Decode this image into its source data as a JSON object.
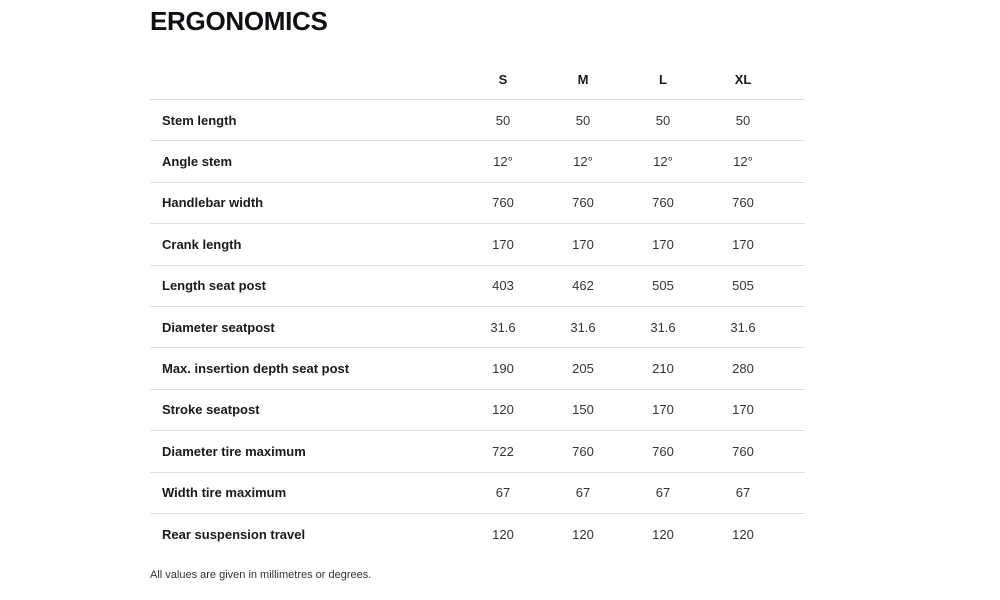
{
  "page": {
    "title": "ERGONOMICS",
    "footnote": "All values are given in millimetres or degrees."
  },
  "table": {
    "columns": [
      "S",
      "M",
      "L",
      "XL"
    ],
    "rows": [
      {
        "label": "Stem length",
        "values": [
          "50",
          "50",
          "50",
          "50"
        ]
      },
      {
        "label": "Angle stem",
        "values": [
          "12°",
          "12°",
          "12°",
          "12°"
        ]
      },
      {
        "label": "Handlebar width",
        "values": [
          "760",
          "760",
          "760",
          "760"
        ]
      },
      {
        "label": "Crank length",
        "values": [
          "170",
          "170",
          "170",
          "170"
        ]
      },
      {
        "label": "Length seat post",
        "values": [
          "403",
          "462",
          "505",
          "505"
        ]
      },
      {
        "label": "Diameter seatpost",
        "values": [
          "31.6",
          "31.6",
          "31.6",
          "31.6"
        ]
      },
      {
        "label": "Max. insertion depth seat post",
        "values": [
          "190",
          "205",
          "210",
          "280"
        ]
      },
      {
        "label": "Stroke seatpost",
        "values": [
          "120",
          "150",
          "170",
          "170"
        ]
      },
      {
        "label": "Diameter tire maximum",
        "values": [
          "722",
          "760",
          "760",
          "760"
        ]
      },
      {
        "label": "Width tire maximum",
        "values": [
          "67",
          "67",
          "67",
          "67"
        ]
      },
      {
        "label": "Rear suspension travel",
        "values": [
          "120",
          "120",
          "120",
          "120"
        ]
      }
    ]
  },
  "colors": {
    "background": "#ffffff",
    "title_text": "#0f0f14",
    "label_text": "#1a1a1a",
    "value_text": "#333333",
    "divider": "#d9d9d9"
  }
}
